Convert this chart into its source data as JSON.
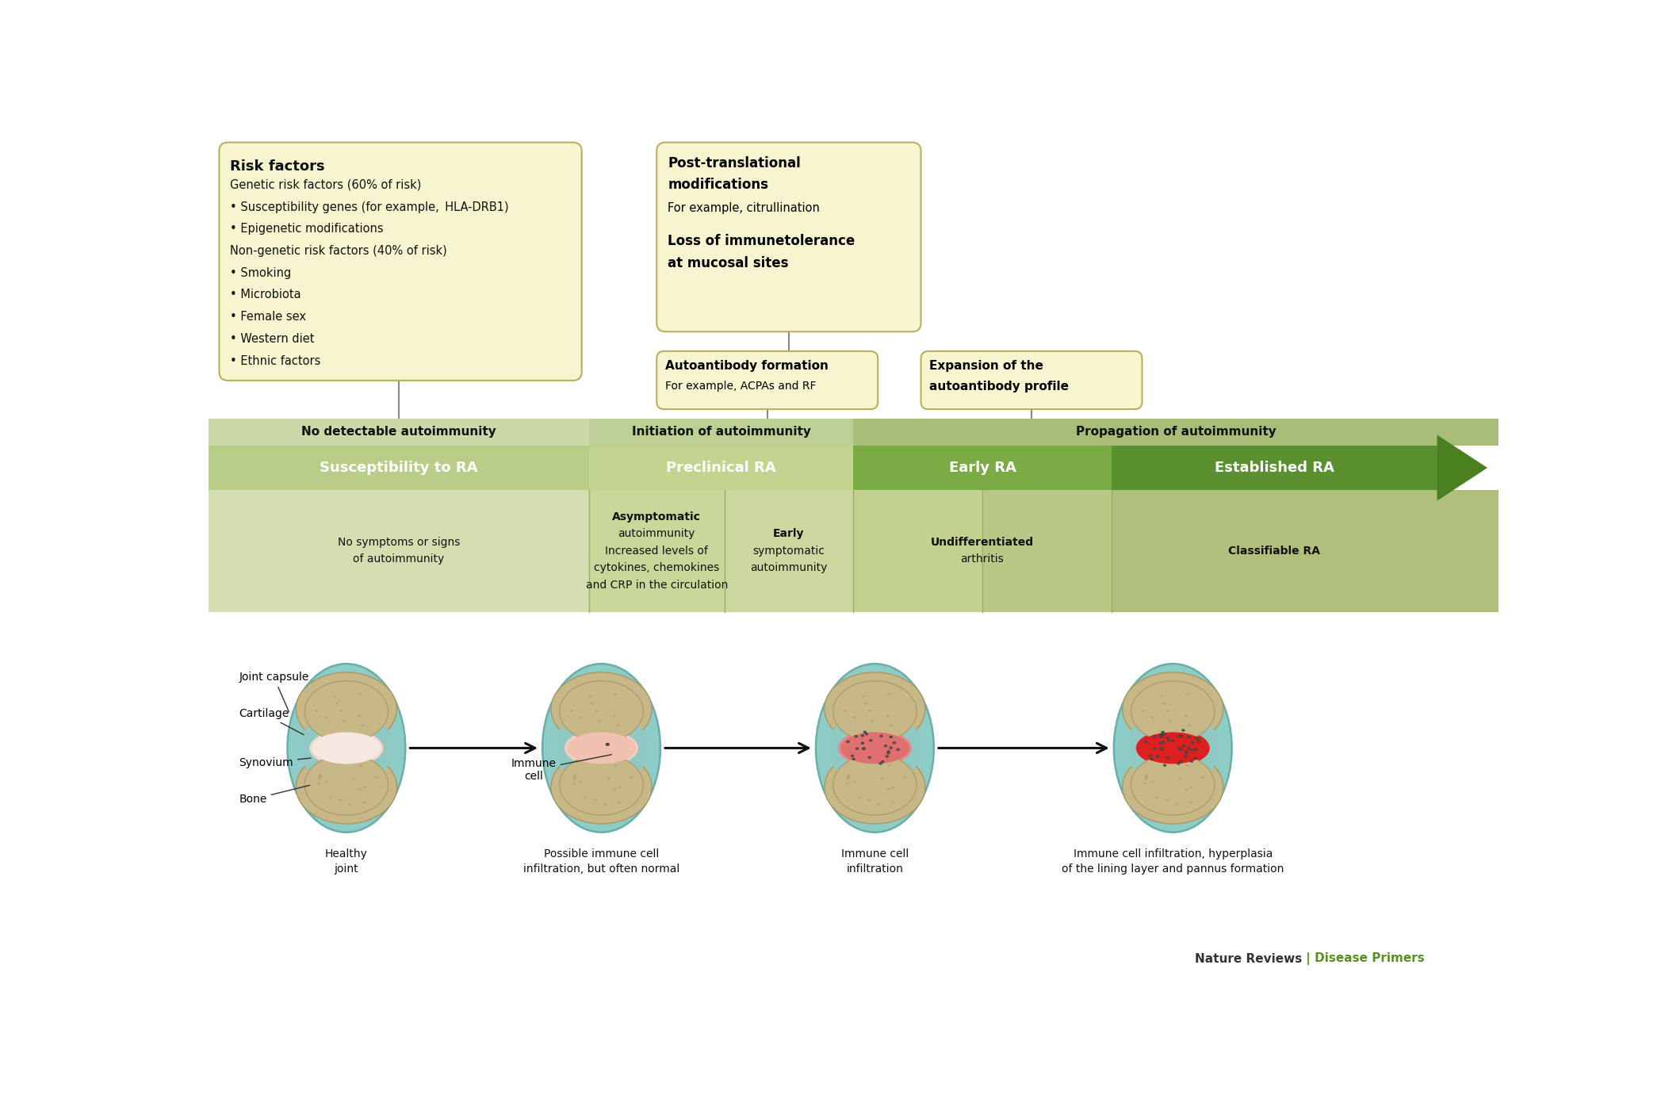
{
  "fig_width": 21.0,
  "fig_height": 13.81,
  "bg_color": "#ffffff",
  "risk_box_title": "Risk factors",
  "risk_box_lines": [
    [
      "Genetic risk factors (60% of risk)",
      false
    ],
    [
      "• Susceptibility genes (for example, ",
      false,
      "HLA-DRB1",
      true,
      ")",
      false
    ],
    [
      "• Epigenetic modifications",
      false
    ],
    [
      "Non-genetic risk factors (40% of risk)",
      false
    ],
    [
      "• Smoking",
      false
    ],
    [
      "• Microbiota",
      false
    ],
    [
      "• Female sex",
      false
    ],
    [
      "• Western diet",
      false
    ],
    [
      "• Ethnic factors",
      false
    ]
  ],
  "risk_box_color": "#f7f4d0",
  "risk_box_border": "#b8b060",
  "post_trans_title1": "Post-translational",
  "post_trans_title2": "modifications",
  "post_trans_sub": "For example, citrullination",
  "loss_title1": "Loss of immunetolerance",
  "loss_title2": "at mucosal sites",
  "auto_box_title": "Autoantibody formation",
  "auto_box_sub": "For example, ACPAs and RF",
  "expansion_title1": "Expansion of the",
  "expansion_title2": "autoantibody profile",
  "box_color": "#f7f4d0",
  "box_border": "#b8b060",
  "top_band_colors": [
    "#cdd9a8",
    "#b8ca88",
    "#a0b870"
  ],
  "stage_colors": [
    "#b0c878",
    "#bdd488",
    "#7aaa48",
    "#5a9030"
  ],
  "arrow_color": "#4a8020",
  "sub_colors": [
    "#d0dca8",
    "#c8d898",
    "#c0d090",
    "#b0c880",
    "#a8c070"
  ],
  "stage_labels": [
    "Susceptibility to RA",
    "Preclinical RA",
    "Early RA",
    "Established RA"
  ],
  "top_labels": [
    "No detectable autoimmunity",
    "Initiation of autoimmunity",
    "Propagation of autoimmunity"
  ],
  "sub_texts": [
    "No symptoms or signs\nof autoimmunity",
    "Asymptomatic\nautoimmunity\nIncreased levels of\ncytokines, chemokines\nand CRP in the circulation",
    "Early\nsymptomatic\nautoimmunity",
    "Undifferentiated\narthritis",
    "Classifiable RA"
  ],
  "joint_captions": [
    "Healthy\njoint",
    "Possible immune cell\ninfiltration, but often normal",
    "Immune cell\ninfiltration",
    "Immune cell infiltration, hyperplasia\nof the lining layer and pannus formation"
  ],
  "anatomy_labels": [
    "Joint capsule",
    "Cartilage",
    "Synovium",
    "Bone"
  ],
  "teal_capsule": "#8eccc8",
  "bone_tan": "#c8b888",
  "bone_dots": "#b8a878",
  "cartilage_blue": "#90c8c4",
  "synovium_pink": "#f0d0c8",
  "synovium_red2": "#e89090",
  "synovium_red3": "#d85050",
  "synovium_red4": "#cc2020",
  "joint_space_pink": "#f5e0d8",
  "joint_space_red2": "#f0b0a0",
  "joint_space_red3": "#e06060",
  "joint_space_red4": "#dd2828",
  "nature_text": "Nature Reviews",
  "disease_text": " | Disease Primers",
  "nature_color": "#333333",
  "disease_color": "#5a9020"
}
